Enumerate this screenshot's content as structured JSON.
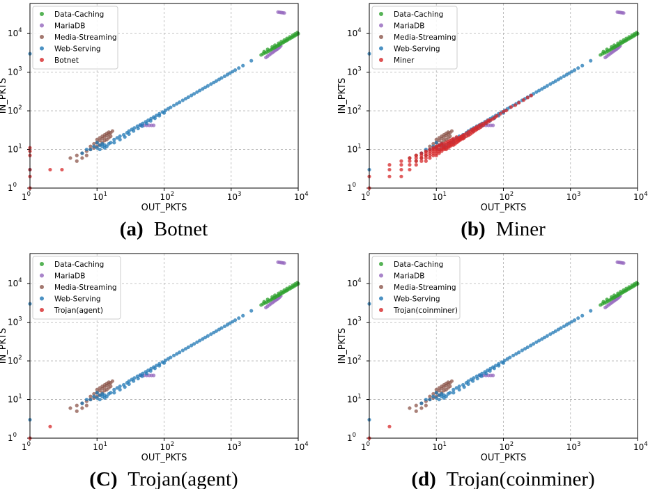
{
  "colors": {
    "Data-Caching": "#2ca02c",
    "MariaDB": "#9467bd",
    "Media-Streaming": "#8c564b",
    "Web-Serving": "#1f77b4",
    "attack": "#d62728"
  },
  "chart_data": [
    {
      "type": "scatter",
      "panel": "a",
      "caption_letter": "(a)",
      "caption_text": "Botnet",
      "xlabel": "OUT_PKTS",
      "ylabel": "IN_PKTS",
      "xscale": "log",
      "yscale": "log",
      "xlim": [
        1,
        10000
      ],
      "ylim": [
        1,
        60000
      ],
      "xticks": [
        "1",
        "1",
        "2",
        "3",
        "4"
      ],
      "yticks": [
        "1",
        "1",
        "2",
        "3",
        "4"
      ],
      "grid": true,
      "legend": [
        "Data-Caching",
        "MariaDB",
        "Media-Streaming",
        "Web-Serving",
        "Botnet"
      ],
      "legend_position": "top-left",
      "attack_series": "Botnet",
      "attack_points": [
        [
          1,
          1
        ],
        [
          1,
          2
        ],
        [
          1,
          3
        ],
        [
          1,
          7
        ],
        [
          1,
          9
        ],
        [
          1,
          11
        ],
        [
          2,
          3
        ],
        [
          3,
          3
        ]
      ]
    },
    {
      "type": "scatter",
      "panel": "b",
      "caption_letter": "(b)",
      "caption_text": "Miner",
      "xlabel": "OUT_PKTS",
      "ylabel": "IN_PKTS",
      "xscale": "log",
      "yscale": "log",
      "xlim": [
        1,
        10000
      ],
      "ylim": [
        1,
        60000
      ],
      "xticks": [
        "1",
        "1",
        "2",
        "3",
        "4"
      ],
      "yticks": [
        "1",
        "1",
        "2",
        "3",
        "4"
      ],
      "grid": true,
      "legend": [
        "Data-Caching",
        "MariaDB",
        "Media-Streaming",
        "Web-Serving",
        "Miner"
      ],
      "legend_position": "top-left",
      "attack_series": "Miner",
      "attack_points": [
        [
          1,
          1
        ],
        [
          1,
          2
        ],
        [
          2,
          2
        ],
        [
          2,
          3
        ],
        [
          2,
          4
        ],
        [
          3,
          2
        ],
        [
          3,
          3
        ],
        [
          3,
          4
        ],
        [
          3,
          5
        ],
        [
          4,
          3
        ],
        [
          4,
          4
        ],
        [
          4,
          5
        ],
        [
          4,
          6
        ],
        [
          5,
          4
        ],
        [
          5,
          5
        ],
        [
          5,
          6
        ],
        [
          5,
          7
        ],
        [
          6,
          5
        ],
        [
          6,
          6
        ],
        [
          6,
          7
        ],
        [
          6,
          8
        ],
        [
          7,
          5
        ],
        [
          7,
          6
        ],
        [
          7,
          7
        ],
        [
          7,
          8
        ],
        [
          7,
          9
        ],
        [
          8,
          6
        ],
        [
          8,
          7
        ],
        [
          8,
          8
        ],
        [
          8,
          9
        ],
        [
          8,
          10
        ],
        [
          9,
          7
        ],
        [
          9,
          8
        ],
        [
          9,
          9
        ],
        [
          9,
          10
        ],
        [
          9,
          11
        ],
        [
          10,
          7
        ],
        [
          10,
          8
        ],
        [
          10,
          9
        ],
        [
          10,
          10
        ],
        [
          10,
          11
        ],
        [
          10,
          12
        ],
        [
          11,
          8
        ],
        [
          11,
          9
        ],
        [
          11,
          10
        ],
        [
          11,
          12
        ],
        [
          11,
          13
        ],
        [
          12,
          9
        ],
        [
          12,
          10
        ],
        [
          12,
          11
        ],
        [
          12,
          13
        ],
        [
          12,
          14
        ],
        [
          13,
          10
        ],
        [
          13,
          11
        ],
        [
          13,
          12
        ],
        [
          13,
          14
        ],
        [
          14,
          10
        ],
        [
          14,
          11
        ],
        [
          14,
          13
        ],
        [
          14,
          15
        ],
        [
          15,
          11
        ],
        [
          15,
          12
        ],
        [
          15,
          14
        ],
        [
          15,
          16
        ],
        [
          16,
          12
        ],
        [
          16,
          13
        ],
        [
          16,
          15
        ],
        [
          16,
          17
        ],
        [
          17,
          13
        ],
        [
          17,
          15
        ],
        [
          17,
          18
        ],
        [
          18,
          13
        ],
        [
          18,
          16
        ],
        [
          18,
          19
        ],
        [
          19,
          14
        ],
        [
          19,
          17
        ],
        [
          20,
          15
        ],
        [
          20,
          18
        ],
        [
          20,
          21
        ],
        [
          21,
          16
        ],
        [
          21,
          19
        ],
        [
          22,
          17
        ],
        [
          22,
          20
        ],
        [
          23,
          18
        ],
        [
          23,
          21
        ],
        [
          24,
          19
        ],
        [
          24,
          22
        ],
        [
          25,
          19
        ],
        [
          25,
          23
        ],
        [
          26,
          20
        ],
        [
          26,
          24
        ],
        [
          28,
          22
        ],
        [
          28,
          26
        ],
        [
          30,
          23
        ],
        [
          30,
          28
        ],
        [
          32,
          25
        ],
        [
          32,
          30
        ],
        [
          34,
          27
        ],
        [
          34,
          32
        ],
        [
          36,
          29
        ],
        [
          36,
          34
        ],
        [
          38,
          31
        ],
        [
          38,
          36
        ],
        [
          40,
          33
        ],
        [
          40,
          38
        ],
        [
          43,
          35
        ],
        [
          43,
          41
        ],
        [
          46,
          38
        ],
        [
          46,
          44
        ],
        [
          50,
          42
        ],
        [
          50,
          47
        ],
        [
          55,
          47
        ],
        [
          55,
          52
        ],
        [
          60,
          52
        ],
        [
          60,
          57
        ],
        [
          65,
          58
        ],
        [
          70,
          62
        ],
        [
          75,
          68
        ],
        [
          80,
          74
        ],
        [
          90,
          84
        ],
        [
          100,
          95
        ],
        [
          110,
          102
        ],
        [
          130,
          125
        ],
        [
          150,
          140
        ],
        [
          170,
          162
        ],
        [
          200,
          190
        ],
        [
          230,
          220
        ],
        [
          260,
          248
        ]
      ]
    },
    {
      "type": "scatter",
      "panel": "c",
      "caption_letter": "(C)",
      "caption_text": "Trojan(agent)",
      "xlabel": "OUT_PKTS",
      "ylabel": "IN_PKTS",
      "xscale": "log",
      "yscale": "log",
      "xlim": [
        1,
        10000
      ],
      "ylim": [
        1,
        60000
      ],
      "xticks": [
        "1",
        "1",
        "2",
        "3",
        "4"
      ],
      "yticks": [
        "1",
        "1",
        "2",
        "3",
        "4"
      ],
      "grid": true,
      "legend": [
        "Data-Caching",
        "MariaDB",
        "Media-Streaming",
        "Web-Serving",
        "Trojan(agent)"
      ],
      "legend_position": "top-left",
      "attack_series": "Trojan(agent)",
      "attack_points": [
        [
          1,
          1
        ],
        [
          2,
          2
        ]
      ]
    },
    {
      "type": "scatter",
      "panel": "d",
      "caption_letter": "(d)",
      "caption_text": "Trojan(coinminer)",
      "xlabel": "OUT_PKTS",
      "ylabel": "IN_PKTS",
      "xscale": "log",
      "yscale": "log",
      "xlim": [
        1,
        10000
      ],
      "ylim": [
        1,
        60000
      ],
      "xticks": [
        "1",
        "1",
        "2",
        "3",
        "4"
      ],
      "yticks": [
        "1",
        "1",
        "2",
        "3",
        "4"
      ],
      "grid": true,
      "legend": [
        "Data-Caching",
        "MariaDB",
        "Media-Streaming",
        "Web-Serving",
        "Trojan(coinminer)"
      ],
      "legend_position": "top-left",
      "attack_series": "Trojan(coinminer)",
      "attack_points": [
        [
          1,
          1
        ],
        [
          2,
          2
        ]
      ]
    }
  ],
  "benign_series": {
    "Data-Caching": [
      [
        2800,
        2800
      ],
      [
        3000,
        3000
      ],
      [
        3200,
        3150
      ],
      [
        3400,
        3300
      ],
      [
        3600,
        3500
      ],
      [
        3800,
        3700
      ],
      [
        4000,
        3900
      ],
      [
        4200,
        4100
      ],
      [
        4400,
        4300
      ],
      [
        4600,
        4500
      ],
      [
        4800,
        4700
      ],
      [
        5000,
        4900
      ],
      [
        5200,
        5100
      ],
      [
        5500,
        5400
      ],
      [
        5800,
        5700
      ],
      [
        6100,
        6000
      ],
      [
        6400,
        6300
      ],
      [
        6700,
        6600
      ],
      [
        7000,
        6900
      ],
      [
        7400,
        7300
      ],
      [
        7800,
        7700
      ],
      [
        8200,
        8100
      ],
      [
        8600,
        8500
      ],
      [
        9000,
        8900
      ],
      [
        9500,
        9400
      ],
      [
        10000,
        9900
      ],
      [
        3100,
        3400
      ],
      [
        3500,
        3900
      ],
      [
        4100,
        4500
      ],
      [
        4500,
        5000
      ],
      [
        5100,
        5600
      ],
      [
        5600,
        6200
      ],
      [
        6200,
        6800
      ],
      [
        6800,
        7500
      ],
      [
        7500,
        8200
      ],
      [
        8300,
        9100
      ],
      [
        9000,
        9800
      ],
      [
        9700,
        10600
      ]
    ],
    "MariaDB": [
      [
        3300,
        2400
      ],
      [
        3500,
        2600
      ],
      [
        3700,
        2800
      ],
      [
        3900,
        3000
      ],
      [
        4100,
        3200
      ],
      [
        4300,
        3400
      ],
      [
        4500,
        3600
      ],
      [
        4700,
        3800
      ],
      [
        4900,
        4000
      ],
      [
        5100,
        4200
      ],
      [
        5300,
        4500
      ],
      [
        5500,
        4800
      ],
      [
        5000,
        36000
      ],
      [
        5300,
        35500
      ],
      [
        5600,
        35000
      ],
      [
        5900,
        34500
      ],
      [
        6200,
        34000
      ],
      [
        50,
        42
      ],
      [
        55,
        42
      ],
      [
        60,
        42
      ],
      [
        65,
        42
      ],
      [
        70,
        42
      ],
      [
        45,
        42
      ]
    ],
    "Media-Streaming": [
      [
        4,
        6
      ],
      [
        5,
        7
      ],
      [
        5,
        5
      ],
      [
        6,
        8
      ],
      [
        6,
        6
      ],
      [
        7,
        9
      ],
      [
        7,
        7
      ],
      [
        8,
        10
      ],
      [
        8,
        12
      ],
      [
        9,
        11
      ],
      [
        9,
        14
      ],
      [
        10,
        12
      ],
      [
        10,
        15
      ],
      [
        11,
        13
      ],
      [
        11,
        17
      ],
      [
        12,
        15
      ],
      [
        12,
        19
      ],
      [
        13,
        17
      ],
      [
        13,
        21
      ],
      [
        14,
        18
      ],
      [
        14,
        23
      ],
      [
        15,
        20
      ],
      [
        15,
        25
      ],
      [
        16,
        22
      ],
      [
        16,
        27
      ],
      [
        17,
        30
      ],
      [
        10,
        18
      ],
      [
        11,
        20
      ],
      [
        12,
        22
      ],
      [
        13,
        24
      ],
      [
        14,
        26
      ],
      [
        15,
        28
      ]
    ],
    "Web-Serving": [
      [
        1,
        3000
      ],
      [
        1,
        3
      ],
      [
        6,
        8
      ],
      [
        7,
        10
      ],
      [
        8,
        10
      ],
      [
        9,
        12
      ],
      [
        10,
        11
      ],
      [
        10,
        15
      ],
      [
        11,
        13
      ],
      [
        11,
        10
      ],
      [
        12,
        14
      ],
      [
        12,
        12
      ],
      [
        13,
        13
      ],
      [
        13,
        11
      ],
      [
        14,
        12
      ],
      [
        15,
        14
      ],
      [
        16,
        15
      ],
      [
        18,
        18
      ],
      [
        20,
        20
      ],
      [
        22,
        22
      ],
      [
        25,
        24
      ],
      [
        28,
        27
      ],
      [
        30,
        30
      ],
      [
        33,
        33
      ],
      [
        36,
        36
      ],
      [
        40,
        40
      ],
      [
        44,
        43
      ],
      [
        48,
        47
      ],
      [
        53,
        52
      ],
      [
        58,
        57
      ],
      [
        64,
        63
      ],
      [
        70,
        69
      ],
      [
        77,
        76
      ],
      [
        85,
        84
      ],
      [
        95,
        93
      ],
      [
        105,
        103
      ],
      [
        115,
        113
      ],
      [
        125,
        123
      ],
      [
        140,
        138
      ],
      [
        155,
        152
      ],
      [
        170,
        167
      ],
      [
        190,
        187
      ],
      [
        210,
        206
      ],
      [
        230,
        226
      ],
      [
        255,
        250
      ],
      [
        280,
        275
      ],
      [
        310,
        305
      ],
      [
        340,
        335
      ],
      [
        375,
        368
      ],
      [
        410,
        403
      ],
      [
        450,
        443
      ],
      [
        500,
        492
      ],
      [
        550,
        540
      ],
      [
        600,
        590
      ],
      [
        660,
        650
      ],
      [
        720,
        710
      ],
      [
        800,
        785
      ],
      [
        880,
        865
      ],
      [
        960,
        945
      ],
      [
        1050,
        1035
      ],
      [
        1150,
        1135
      ],
      [
        1300,
        1280
      ],
      [
        1500,
        1480
      ],
      [
        2000,
        1980
      ],
      [
        18,
        15
      ],
      [
        22,
        18
      ],
      [
        26,
        21
      ],
      [
        30,
        25
      ],
      [
        35,
        30
      ],
      [
        41,
        35
      ],
      [
        47,
        40
      ],
      [
        55,
        47
      ],
      [
        63,
        55
      ],
      [
        73,
        64
      ],
      [
        85,
        75
      ],
      [
        100,
        88
      ]
    ]
  }
}
